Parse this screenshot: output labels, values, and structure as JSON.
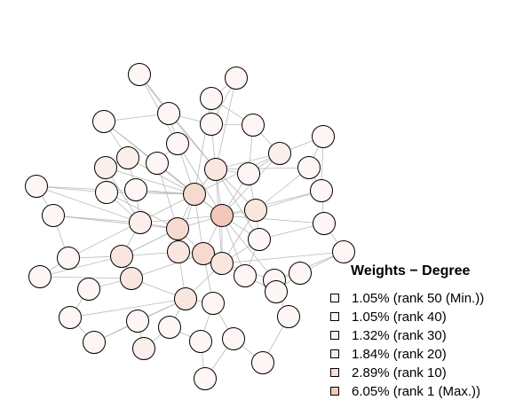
{
  "legend": {
    "title": "Weights − Degree",
    "items": [
      {
        "label": "1.05% (rank 50 (Min.))",
        "color": "#fdf6f4"
      },
      {
        "label": "1.05% (rank 40)",
        "color": "#fdf6f4"
      },
      {
        "label": "1.32% (rank 30)",
        "color": "#fcf2ef"
      },
      {
        "label": "1.84% (rank 20)",
        "color": "#faeae5"
      },
      {
        "label": "2.89% (rank 10)",
        "color": "#f8ddd4"
      },
      {
        "label": "6.05% (rank 1 (Max.))",
        "color": "#f1c8b9"
      }
    ]
  },
  "colors": {
    "edge": "#b9b9b9",
    "node_stroke": "#000000"
  }
}
